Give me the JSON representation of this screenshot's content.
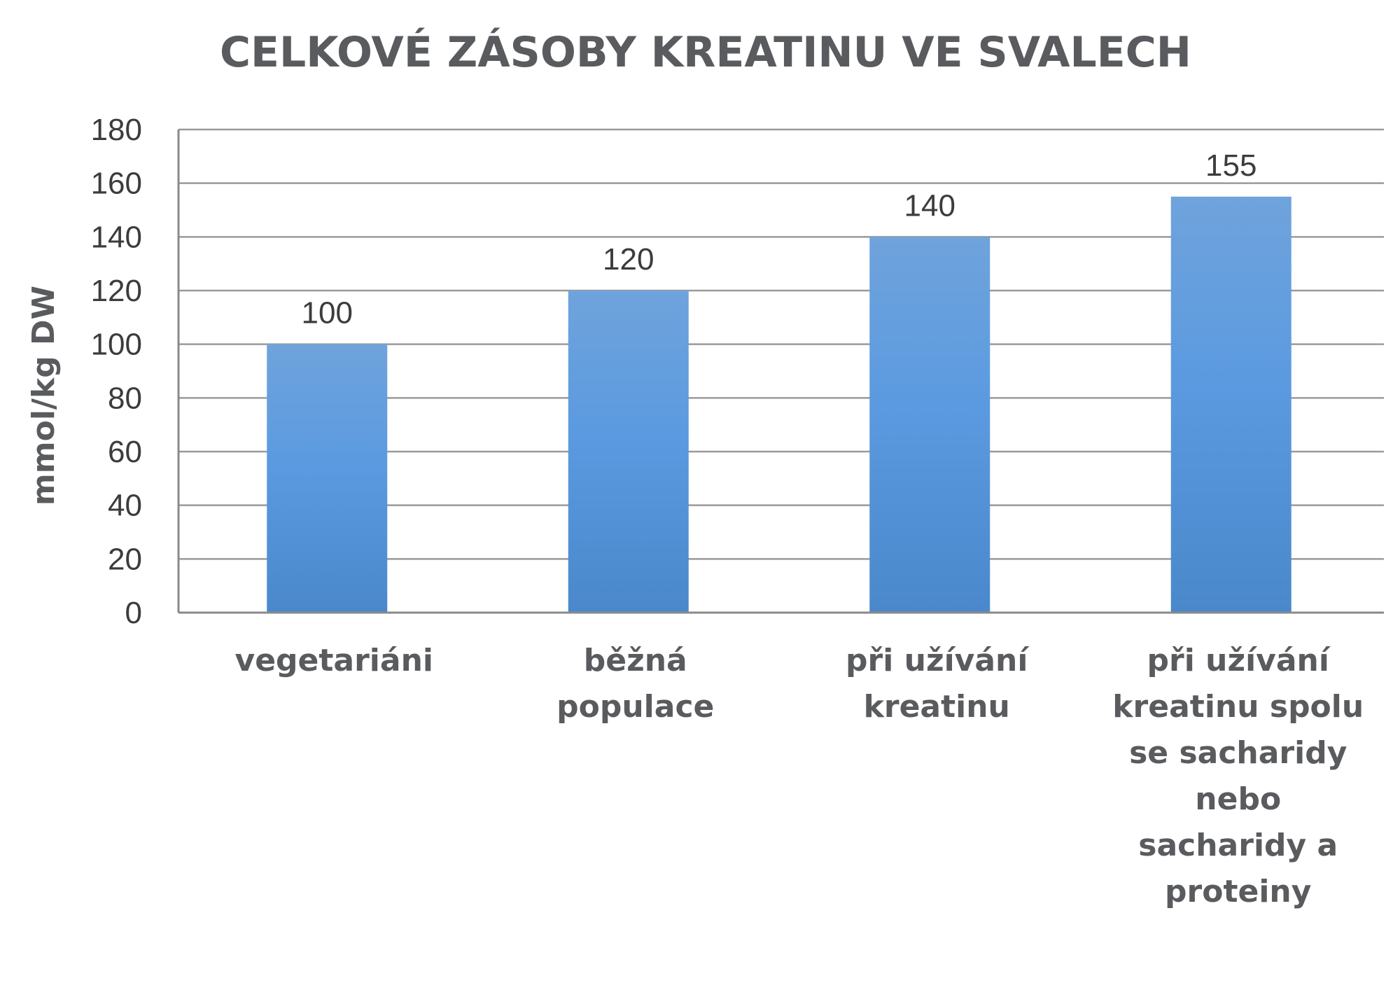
{
  "chart_data": {
    "type": "bar",
    "title": "CELKOVÉ ZÁSOBY KREATINU VE SVALECH",
    "xlabel": "",
    "ylabel": "mmol/kg DW",
    "ylim": [
      0,
      180
    ],
    "yticks": [
      "0",
      "20",
      "40",
      "60",
      "80",
      "100",
      "120",
      "140",
      "160",
      "180"
    ],
    "grid": true,
    "legend": "none",
    "bar_color_top": "#6fa3dc",
    "bar_color_bottom": "#4a88cb",
    "categories": [
      [
        "vegetariáni"
      ],
      [
        "běžná",
        "populace"
      ],
      [
        "při užívání",
        "kreatinu"
      ],
      [
        "při užívání",
        "kreatinu spolu",
        "se sacharidy",
        "nebo",
        "sacharidy a",
        "proteiny"
      ]
    ],
    "values": [
      100,
      120,
      140,
      155
    ],
    "data_labels": [
      "100",
      "120",
      "140",
      "155"
    ]
  }
}
